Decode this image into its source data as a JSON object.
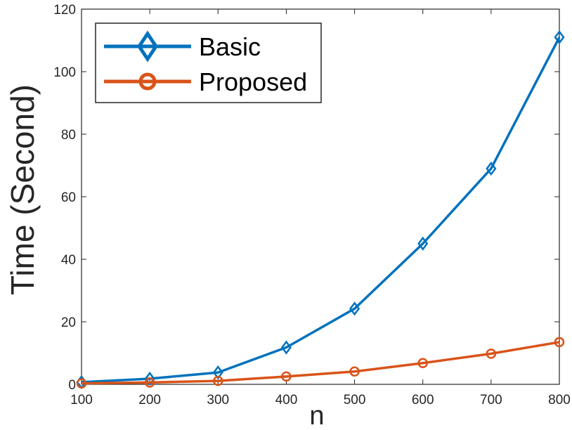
{
  "chart_data": {
    "type": "line",
    "xlabel": "n",
    "ylabel": "Time (Second)",
    "xlim": [
      100,
      800
    ],
    "ylim": [
      0,
      120
    ],
    "xticks": [
      100,
      200,
      300,
      400,
      500,
      600,
      700,
      800
    ],
    "xtick_labels": [
      "100",
      "200",
      "300",
      "400",
      "500",
      "600",
      "700",
      "800"
    ],
    "yticks": [
      0,
      20,
      40,
      60,
      80,
      100,
      120
    ],
    "ytick_labels": [
      "0",
      "20",
      "40",
      "60",
      "80",
      "100",
      "120"
    ],
    "grid": false,
    "legend_position": "top-left",
    "x": [
      100,
      200,
      300,
      400,
      500,
      600,
      700,
      800
    ],
    "series": [
      {
        "name": "Basic",
        "color": "#0072BD",
        "marker": "diamond",
        "values": [
          0.7,
          1.8,
          3.8,
          11.8,
          24.2,
          45.0,
          69.0,
          111.0
        ]
      },
      {
        "name": "Proposed",
        "color": "#D95319",
        "marker": "circle",
        "values": [
          0.3,
          0.6,
          1.1,
          2.5,
          4.1,
          6.8,
          9.8,
          13.5
        ]
      }
    ]
  }
}
